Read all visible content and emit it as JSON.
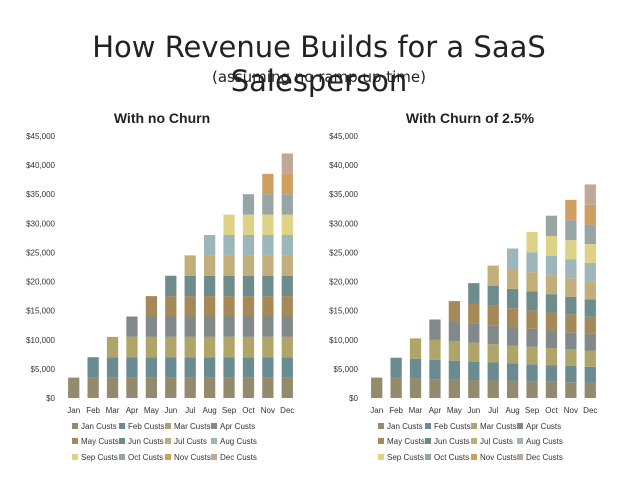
{
  "slide": {
    "title": "How Revenue Builds for a SaaS Salesperson",
    "subtitle": "(assuming no ramp up time)"
  },
  "colors": [
    "#948a6e",
    "#6b8b92",
    "#b0a569",
    "#81898a",
    "#a68958",
    "#6e8c8c",
    "#c2ae7b",
    "#9cb6b9",
    "#ddd286",
    "#97a5a4",
    "#cf9e60",
    "#bfa896"
  ],
  "chart_data": [
    {
      "type": "bar",
      "stacked": true,
      "title": "With no Churn",
      "categories": [
        "Jan",
        "Feb",
        "Mar",
        "Apr",
        "May",
        "Jun",
        "Jul",
        "Aug",
        "Sep",
        "Oct",
        "Nov",
        "Dec"
      ],
      "ylim": [
        0,
        45000
      ],
      "yticks": [
        "$0",
        "$5,000",
        "$10,000",
        "$15,000",
        "$20,000",
        "$25,000",
        "$30,000",
        "$35,000",
        "$40,000",
        "$45,000"
      ],
      "series": [
        {
          "name": "Jan Custs",
          "values": [
            3500,
            3500,
            3500,
            3500,
            3500,
            3500,
            3500,
            3500,
            3500,
            3500,
            3500,
            3500
          ]
        },
        {
          "name": "Feb Custs",
          "values": [
            0,
            3500,
            3500,
            3500,
            3500,
            3500,
            3500,
            3500,
            3500,
            3500,
            3500,
            3500
          ]
        },
        {
          "name": "Mar Custs",
          "values": [
            0,
            0,
            3500,
            3500,
            3500,
            3500,
            3500,
            3500,
            3500,
            3500,
            3500,
            3500
          ]
        },
        {
          "name": "Apr Custs",
          "values": [
            0,
            0,
            0,
            3500,
            3500,
            3500,
            3500,
            3500,
            3500,
            3500,
            3500,
            3500
          ]
        },
        {
          "name": "May Custs",
          "values": [
            0,
            0,
            0,
            0,
            3500,
            3500,
            3500,
            3500,
            3500,
            3500,
            3500,
            3500
          ]
        },
        {
          "name": "Jun Custs",
          "values": [
            0,
            0,
            0,
            0,
            0,
            3500,
            3500,
            3500,
            3500,
            3500,
            3500,
            3500
          ]
        },
        {
          "name": "Jul Custs",
          "values": [
            0,
            0,
            0,
            0,
            0,
            0,
            3500,
            3500,
            3500,
            3500,
            3500,
            3500
          ]
        },
        {
          "name": "Aug Custs",
          "values": [
            0,
            0,
            0,
            0,
            0,
            0,
            0,
            3500,
            3500,
            3500,
            3500,
            3500
          ]
        },
        {
          "name": "Sep Custs",
          "values": [
            0,
            0,
            0,
            0,
            0,
            0,
            0,
            0,
            3500,
            3500,
            3500,
            3500
          ]
        },
        {
          "name": "Oct Custs",
          "values": [
            0,
            0,
            0,
            0,
            0,
            0,
            0,
            0,
            0,
            3500,
            3500,
            3500
          ]
        },
        {
          "name": "Nov Custs",
          "values": [
            0,
            0,
            0,
            0,
            0,
            0,
            0,
            0,
            0,
            0,
            3500,
            3500
          ]
        },
        {
          "name": "Dec Custs",
          "values": [
            0,
            0,
            0,
            0,
            0,
            0,
            0,
            0,
            0,
            0,
            0,
            3500
          ]
        }
      ],
      "legend_position": "bottom"
    },
    {
      "type": "bar",
      "stacked": true,
      "title": "With Churn of 2.5%",
      "categories": [
        "Jan",
        "Feb",
        "Mar",
        "Apr",
        "May",
        "Jun",
        "Jul",
        "Aug",
        "Sep",
        "Oct",
        "Nov",
        "Dec"
      ],
      "ylim": [
        0,
        45000
      ],
      "yticks": [
        "$0",
        "$5,000",
        "$10,000",
        "$15,000",
        "$20,000",
        "$25,000",
        "$30,000",
        "$35,000",
        "$40,000",
        "$45,000"
      ],
      "series": [
        {
          "name": "Jan Custs",
          "values": [
            3500,
            3413,
            3327,
            3244,
            3163,
            3084,
            3007,
            2932,
            2858,
            2787,
            2717,
            2649
          ]
        },
        {
          "name": "Feb Custs",
          "values": [
            0,
            3500,
            3413,
            3327,
            3244,
            3163,
            3084,
            3007,
            2932,
            2858,
            2787,
            2717
          ]
        },
        {
          "name": "Mar Custs",
          "values": [
            0,
            0,
            3500,
            3413,
            3327,
            3244,
            3163,
            3084,
            3007,
            2932,
            2858,
            2787
          ]
        },
        {
          "name": "Apr Custs",
          "values": [
            0,
            0,
            0,
            3500,
            3413,
            3327,
            3244,
            3163,
            3084,
            3007,
            2932,
            2858
          ]
        },
        {
          "name": "May Custs",
          "values": [
            0,
            0,
            0,
            0,
            3500,
            3413,
            3327,
            3244,
            3163,
            3084,
            3007,
            2932
          ]
        },
        {
          "name": "Jun Custs",
          "values": [
            0,
            0,
            0,
            0,
            0,
            3500,
            3413,
            3327,
            3244,
            3163,
            3084,
            3007
          ]
        },
        {
          "name": "Jul Custs",
          "values": [
            0,
            0,
            0,
            0,
            0,
            0,
            3500,
            3413,
            3327,
            3244,
            3163,
            3084
          ]
        },
        {
          "name": "Aug Custs",
          "values": [
            0,
            0,
            0,
            0,
            0,
            0,
            0,
            3500,
            3413,
            3327,
            3244,
            3163
          ]
        },
        {
          "name": "Sep Custs",
          "values": [
            0,
            0,
            0,
            0,
            0,
            0,
            0,
            0,
            3500,
            3413,
            3327,
            3244
          ]
        },
        {
          "name": "Oct Custs",
          "values": [
            0,
            0,
            0,
            0,
            0,
            0,
            0,
            0,
            0,
            3500,
            3413,
            3327
          ]
        },
        {
          "name": "Nov Custs",
          "values": [
            0,
            0,
            0,
            0,
            0,
            0,
            0,
            0,
            0,
            0,
            3500,
            3413
          ]
        },
        {
          "name": "Dec Custs",
          "values": [
            0,
            0,
            0,
            0,
            0,
            0,
            0,
            0,
            0,
            0,
            0,
            3500
          ]
        }
      ],
      "legend_position": "bottom"
    }
  ]
}
